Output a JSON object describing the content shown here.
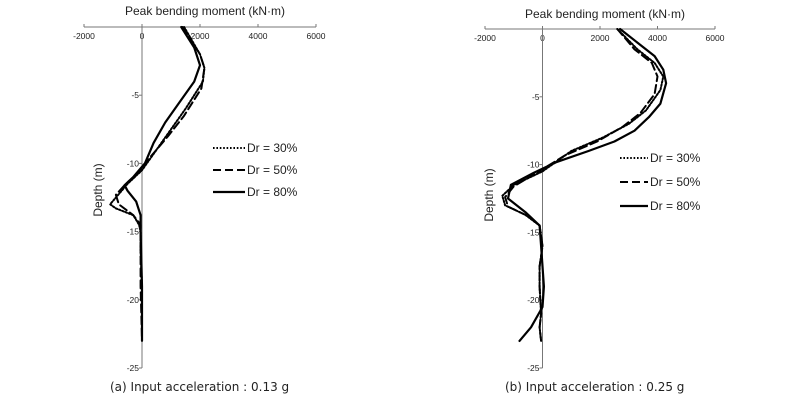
{
  "captions": {
    "left": "(a)  Input acceleration : 0.13 g",
    "right": "(b)  Input acceleration : 0.25 g"
  },
  "chart_data": [
    {
      "type": "line",
      "title": "Peak bending moment (kN·m)",
      "xlabel": "Peak bending moment (kN·m)",
      "ylabel": "Depth (m)",
      "xlim": [
        -2000,
        6000
      ],
      "ylim": [
        -25,
        0
      ],
      "x_ticks": [
        "-2000",
        "0",
        "2000",
        "4000",
        "6000"
      ],
      "y_ticks": [
        "-5",
        "-10",
        "-15",
        "-20",
        "-25"
      ],
      "x_axis_position": "top",
      "grid": false,
      "legend_position": "center-right",
      "series": [
        {
          "name": "Dr = 30%",
          "style": "dotted",
          "x": [
            1450,
            2000,
            2150,
            2100,
            1500,
            1000,
            500,
            0,
            -500,
            -900,
            -1100,
            -900,
            -300,
            -100,
            -50,
            -50,
            0,
            0
          ],
          "y": [
            0,
            -2,
            -3,
            -4,
            -6,
            -7.5,
            -9,
            -10.5,
            -11.5,
            -12.5,
            -13,
            -13.3,
            -13.8,
            -14.5,
            -15,
            -16.5,
            -19,
            -23
          ]
        },
        {
          "name": "Dr = 50%",
          "style": "dashed",
          "x": [
            1400,
            2000,
            2150,
            2050,
            1450,
            900,
            300,
            -200,
            -600,
            -900,
            -800,
            -300,
            -50,
            -50,
            -50,
            0
          ],
          "y": [
            0,
            -2,
            -3,
            -4.5,
            -6.5,
            -8,
            -9.5,
            -10.8,
            -11.6,
            -12.3,
            -13,
            -13.8,
            -14.5,
            -15.5,
            -19,
            -23
          ]
        },
        {
          "name": "Dr = 80%",
          "style": "solid",
          "x": [
            1350,
            1800,
            2000,
            1800,
            1300,
            800,
            400,
            100,
            -300,
            -600,
            -500,
            -200,
            -50,
            -50,
            0,
            0
          ],
          "y": [
            0,
            -1.5,
            -2.8,
            -4,
            -5.5,
            -7,
            -8.5,
            -10,
            -11,
            -11.6,
            -12,
            -12.8,
            -13.8,
            -15,
            -19,
            -23
          ]
        }
      ]
    },
    {
      "type": "line",
      "title": "Peak bending moment (kN·m)",
      "xlabel": "Peak bending moment (kN·m)",
      "ylabel": "Depth (m)",
      "xlim": [
        -2000,
        6000
      ],
      "ylim": [
        -25,
        0
      ],
      "x_ticks": [
        "-2000",
        "0",
        "2000",
        "4000",
        "6000"
      ],
      "y_ticks": [
        "-5",
        "-10",
        "-15",
        "-20",
        "-25"
      ],
      "x_axis_position": "top",
      "grid": false,
      "legend_position": "center-right",
      "series": [
        {
          "name": "Dr = 30%",
          "style": "dotted",
          "x": [
            2600,
            3300,
            3900,
            4200,
            4100,
            3600,
            3000,
            2100,
            1000,
            0,
            -1000,
            -1400,
            -1300,
            -600,
            -100,
            0,
            -100,
            -100,
            -50,
            -100,
            -50
          ],
          "y": [
            0,
            -1.5,
            -2.5,
            -3.5,
            -4.5,
            -6,
            -7,
            -8,
            -9,
            -10.5,
            -11.5,
            -12.3,
            -13,
            -13.7,
            -14.5,
            -16,
            -17.5,
            -19,
            -21,
            -22,
            -23
          ]
        },
        {
          "name": "Dr = 50%",
          "style": "dashed",
          "x": [
            2600,
            3200,
            3800,
            4000,
            3900,
            3400,
            2800,
            1900,
            800,
            -200,
            -1000,
            -1300,
            -1200,
            -500,
            -100,
            0,
            -100,
            -100,
            -50,
            -100,
            -50
          ],
          "y": [
            0,
            -1.5,
            -2.5,
            -3.5,
            -4.8,
            -6.2,
            -7.2,
            -8.3,
            -9.3,
            -10.6,
            -11.6,
            -12.4,
            -13.1,
            -13.8,
            -14.5,
            -16,
            -17.5,
            -19,
            -21,
            -22,
            -23
          ]
        },
        {
          "name": "Dr = 80%",
          "style": "solid",
          "x": [
            2700,
            3300,
            3900,
            4200,
            4300,
            4100,
            3700,
            3200,
            2500,
            1600,
            500,
            -300,
            -1100,
            -1200,
            -600,
            -100,
            -50,
            50,
            0,
            -400,
            -800
          ],
          "y": [
            0,
            -1,
            -2,
            -3,
            -4,
            -5.5,
            -6.5,
            -7.5,
            -8.3,
            -9,
            -9.8,
            -10.6,
            -11.5,
            -12.5,
            -13.5,
            -14.5,
            -16,
            -19,
            -20.5,
            -22,
            -23
          ]
        }
      ]
    }
  ]
}
